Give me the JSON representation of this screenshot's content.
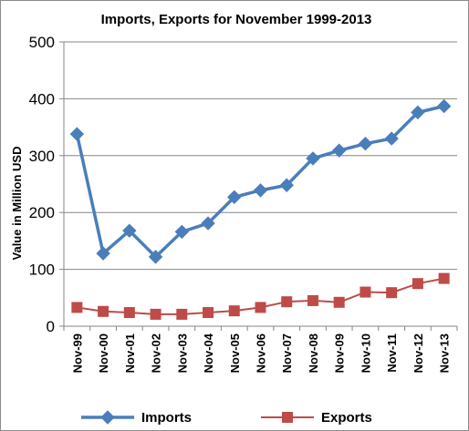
{
  "chart_data": {
    "type": "line",
    "title": "Imports, Exports for November 1999-2013",
    "ylabel": "Value in Million  USD",
    "xlabel": "",
    "ylim": [
      0,
      500
    ],
    "yticks": [
      0,
      100,
      200,
      300,
      400,
      500
    ],
    "grid": true,
    "legend_position": "bottom",
    "categories": [
      "Nov-99",
      "Nov-00",
      "Nov-01",
      "Nov-02",
      "Nov-03",
      "Nov-04",
      "Nov-05",
      "Nov-06",
      "Nov-07",
      "Nov-08",
      "Nov-09",
      "Nov-10",
      "Nov-11",
      "Nov-12",
      "Nov-13"
    ],
    "series": [
      {
        "name": "Imports",
        "color": "#4a7ebb",
        "marker": "diamond",
        "values": [
          338,
          128,
          168,
          122,
          166,
          181,
          227,
          239,
          248,
          295,
          309,
          321,
          330,
          376,
          387
        ]
      },
      {
        "name": "Exports",
        "color": "#be4b48",
        "marker": "square",
        "values": [
          33,
          26,
          24,
          21,
          21,
          24,
          27,
          33,
          43,
          45,
          42,
          60,
          59,
          75,
          84
        ]
      }
    ]
  }
}
